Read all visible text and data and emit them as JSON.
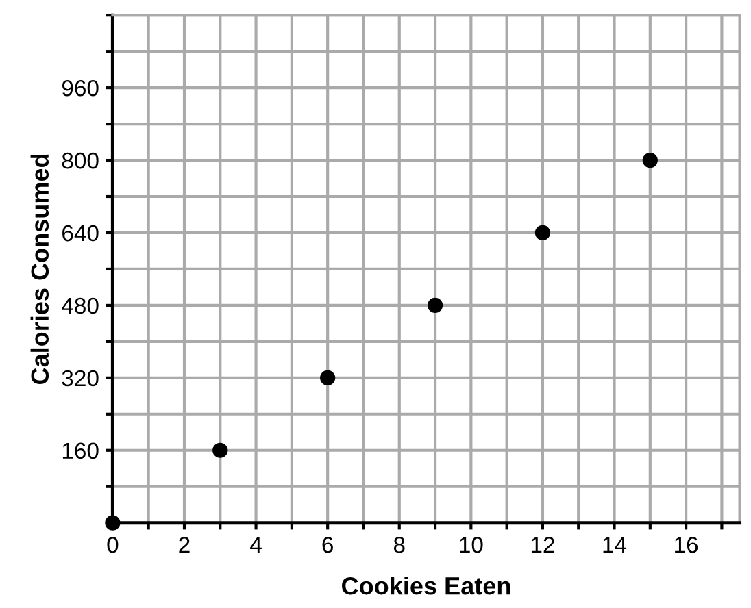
{
  "chart_data": {
    "type": "scatter",
    "xlabel": "Cookies Eaten",
    "ylabel": "Calories Consumed",
    "x": [
      0,
      3,
      6,
      9,
      12,
      15
    ],
    "values": [
      0,
      160,
      320,
      480,
      640,
      800
    ],
    "color": "#000000",
    "marker": "circle",
    "xlim": [
      0,
      17.5
    ],
    "ylim": [
      0,
      1120
    ],
    "xticks": [
      0,
      {
        "value": 1,
        "label": null
      },
      2,
      {
        "value": 3,
        "label": null
      },
      4,
      {
        "value": 5,
        "label": null
      },
      6,
      {
        "value": 7,
        "label": null
      },
      8,
      {
        "value": 9,
        "label": null
      },
      10,
      {
        "value": 11,
        "label": null
      },
      12,
      {
        "value": 13,
        "label": null
      },
      14,
      {
        "value": 15,
        "label": null
      },
      16,
      {
        "value": 17,
        "label": null
      }
    ],
    "yticks": [
      {
        "value": 80,
        "label": null
      },
      160,
      {
        "value": 240,
        "label": null
      },
      320,
      {
        "value": 400,
        "label": null
      },
      480,
      {
        "value": 560,
        "label": null
      },
      640,
      {
        "value": 720,
        "label": null
      },
      800,
      {
        "value": 880,
        "label": null
      },
      960,
      {
        "value": 1040,
        "label": null
      },
      {
        "value": 1120,
        "label": null
      }
    ],
    "grid": true
  }
}
